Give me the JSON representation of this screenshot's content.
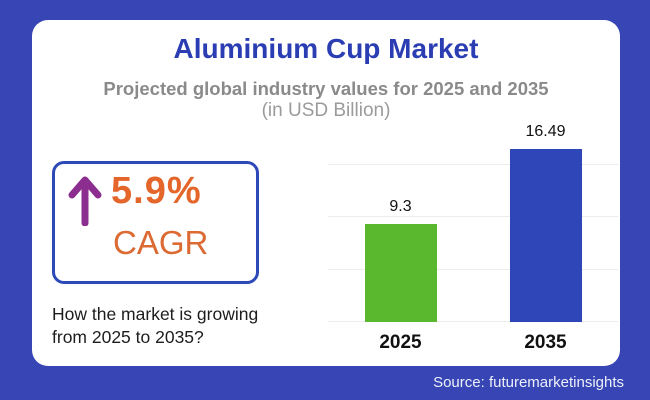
{
  "page": {
    "title": "Aluminium Cup Market",
    "subtitle": "Projected global industry values for 2025 and 2035",
    "unit_note": "(in USD Billion)",
    "source": "Source: futuremarketinsights"
  },
  "cagr": {
    "value": "5.9%",
    "label": "CAGR",
    "caption": "How the market is growing from 2025 to 2035?",
    "arrow_icon": "up-arrow",
    "arrow_color": "#8b2e8f",
    "value_color": "#e4662a"
  },
  "colors": {
    "frame_blue": "#3745b5",
    "title_blue": "#2b3db3",
    "box_border_blue": "#2d49b8",
    "orange": "#e4662a",
    "purple": "#8b2e8f",
    "green_bar": "#5ab82f",
    "blue_bar": "#2e46b8",
    "gridline": "#ececec"
  },
  "chart_data": {
    "type": "bar",
    "title": "Aluminium Cup Market",
    "subtitle": "Projected global industry values for 2025 and 2035",
    "unit": "USD Billion",
    "categories": [
      "2025",
      "2035"
    ],
    "values": [
      9.3,
      16.49
    ],
    "bar_colors": [
      "#5ab82f",
      "#2e46b8"
    ],
    "ylim": [
      0,
      17.5
    ],
    "gridline_step": 5,
    "grid": true,
    "legend": false,
    "value_labels": true
  }
}
